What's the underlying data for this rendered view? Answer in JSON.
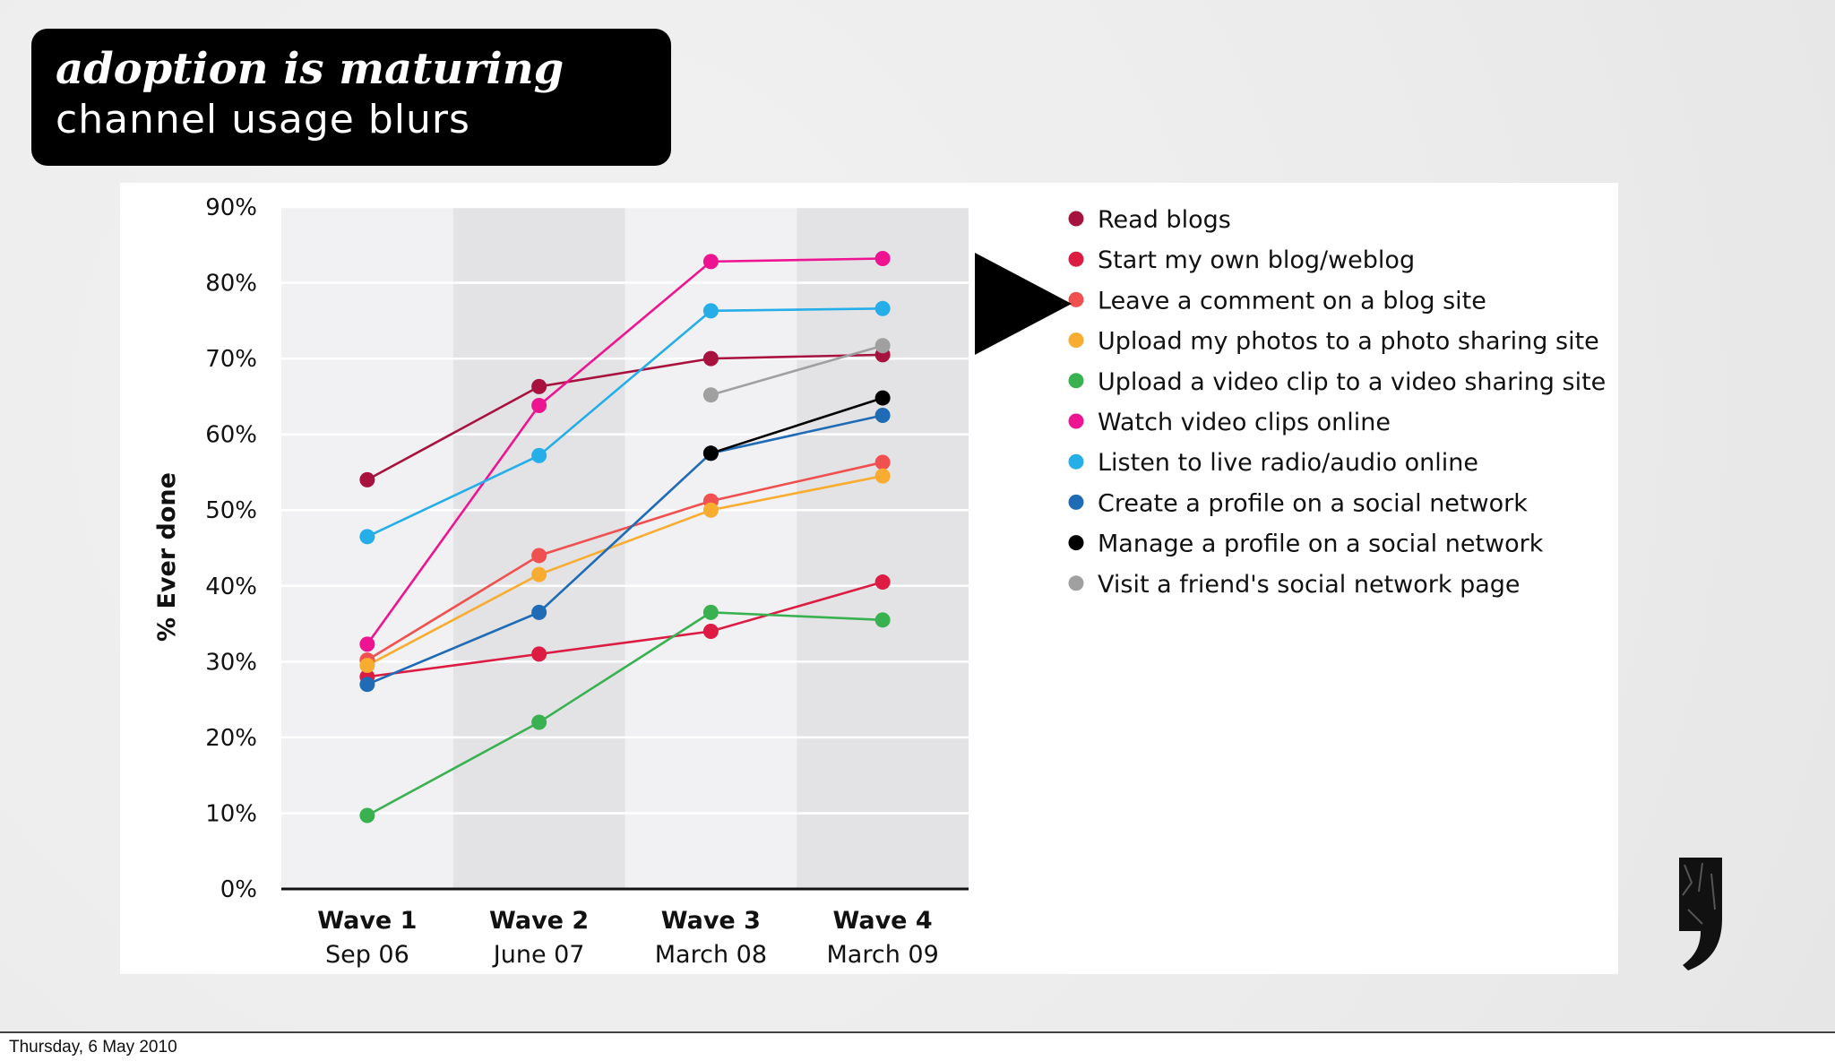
{
  "slide": {
    "title_line1": "adoption is maturing",
    "title_line2": "channel usage blurs",
    "footer_date": "Thursday, 6 May 2010"
  },
  "chart_data": {
    "type": "line",
    "title": "",
    "xlabel": "",
    "ylabel": "% Ever done",
    "ylim": [
      0,
      90
    ],
    "yticks": [
      "0%",
      "10%",
      "20%",
      "30%",
      "40%",
      "50%",
      "60%",
      "70%",
      "80%",
      "90%"
    ],
    "categories": [
      {
        "label": "Wave 1",
        "date": "Sep 06"
      },
      {
        "label": "Wave 2",
        "date": "June 07"
      },
      {
        "label": "Wave 3",
        "date": "March 08"
      },
      {
        "label": "Wave 4",
        "date": "March 09"
      }
    ],
    "grid": true,
    "legend_position": "right",
    "series": [
      {
        "name": "Read blogs",
        "color": "#a8123e",
        "values": [
          54,
          66.3,
          70,
          70.5
        ]
      },
      {
        "name": "Start my own blog/weblog",
        "color": "#dc1c43",
        "values": [
          28,
          31,
          34,
          40.5
        ]
      },
      {
        "name": "Leave a comment on a blog site",
        "color": "#f0504f",
        "values": [
          30.2,
          44,
          51.2,
          56.3
        ]
      },
      {
        "name": "Upload my photos to a photo sharing site",
        "color": "#f8ac30",
        "values": [
          29.5,
          41.5,
          50,
          54.5
        ]
      },
      {
        "name": "Upload a video clip to a video sharing site",
        "color": "#3ab150",
        "values": [
          9.7,
          22,
          36.5,
          35.5
        ]
      },
      {
        "name": "Watch video clips online",
        "color": "#ee1491",
        "values": [
          32.3,
          63.8,
          82.8,
          83.2
        ]
      },
      {
        "name": "Listen to live radio/audio online",
        "color": "#25aee8",
        "values": [
          46.5,
          57.2,
          76.3,
          76.6
        ]
      },
      {
        "name": "Create a profile on a social network",
        "color": "#1f6bb5",
        "values": [
          27,
          36.5,
          57.5,
          62.5
        ]
      },
      {
        "name": "Manage a profile on a social network",
        "color": "#000000",
        "values": [
          null,
          null,
          57.5,
          64.8
        ]
      },
      {
        "name": "Visit a friend's social network page",
        "color": "#a0a0a0",
        "values": [
          null,
          null,
          65.2,
          71.7
        ]
      }
    ]
  },
  "decor": {
    "arrow_icon": "right-pointing-triangle",
    "logo_icon": "comma-logo"
  }
}
